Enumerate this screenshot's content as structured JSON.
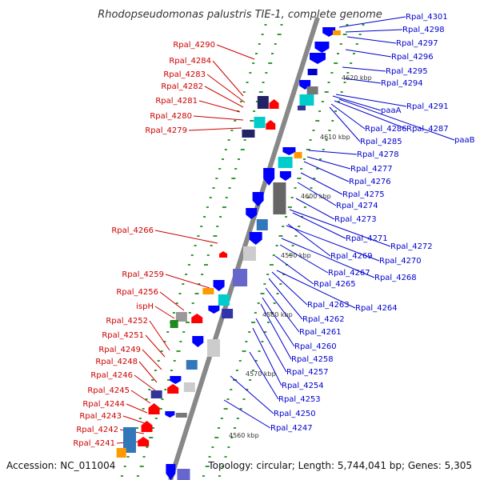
{
  "title": "Rhodopseudomonas palustris TIE-1, complete genome",
  "footer": {
    "accession": "Accession: NC_011004",
    "topology": "Topology: circular; Length: 5,744,041 bp; Genes: 5,305"
  },
  "colors": {
    "backbone": "#888888",
    "plus_label": "#0000cc",
    "minus_label": "#cc0000",
    "tick": "#339933"
  },
  "coordinate_marks": [
    "4620 kbp",
    "4610 kbp",
    "4600 kbp",
    "4590 kbp",
    "4580 kbp",
    "4570 kbp",
    "4560 kbp"
  ],
  "minus_strand_labels": [
    "Rpal_4290",
    "Rpal_4284",
    "Rpal_4283",
    "Rpal_4282",
    "Rpal_4281",
    "Rpal_4280",
    "Rpal_4279",
    "Rpal_4266",
    "Rpal_4259",
    "Rpal_4256",
    "ispH",
    "Rpal_4252",
    "Rpal_4251",
    "Rpal_4249",
    "Rpal_4248",
    "Rpal_4246",
    "Rpal_4245",
    "Rpal_4244",
    "Rpal_4243",
    "Rpal_4242",
    "Rpal_4241"
  ],
  "plus_strand_labels": [
    "Rpal_4301",
    "Rpal_4298",
    "Rpal_4297",
    "Rpal_4296",
    "Rpal_4295",
    "Rpal_4294",
    "Rpal_4291",
    "paaA",
    "Rpal_4287",
    "Rpal_4286",
    "paaB",
    "Rpal_4285",
    "Rpal_4278",
    "Rpal_4277",
    "Rpal_4276",
    "Rpal_4275",
    "Rpal_4274",
    "Rpal_4273",
    "Rpal_4272",
    "Rpal_4271",
    "Rpal_4270",
    "Rpal_4269",
    "Rpal_4268",
    "Rpal_4267",
    "Rpal_4265",
    "Rpal_4264",
    "Rpal_4263",
    "Rpal_4262",
    "Rpal_4261",
    "Rpal_4260",
    "Rpal_4258",
    "Rpal_4257",
    "Rpal_4254",
    "Rpal_4253",
    "Rpal_4250",
    "Rpal_4247"
  ]
}
